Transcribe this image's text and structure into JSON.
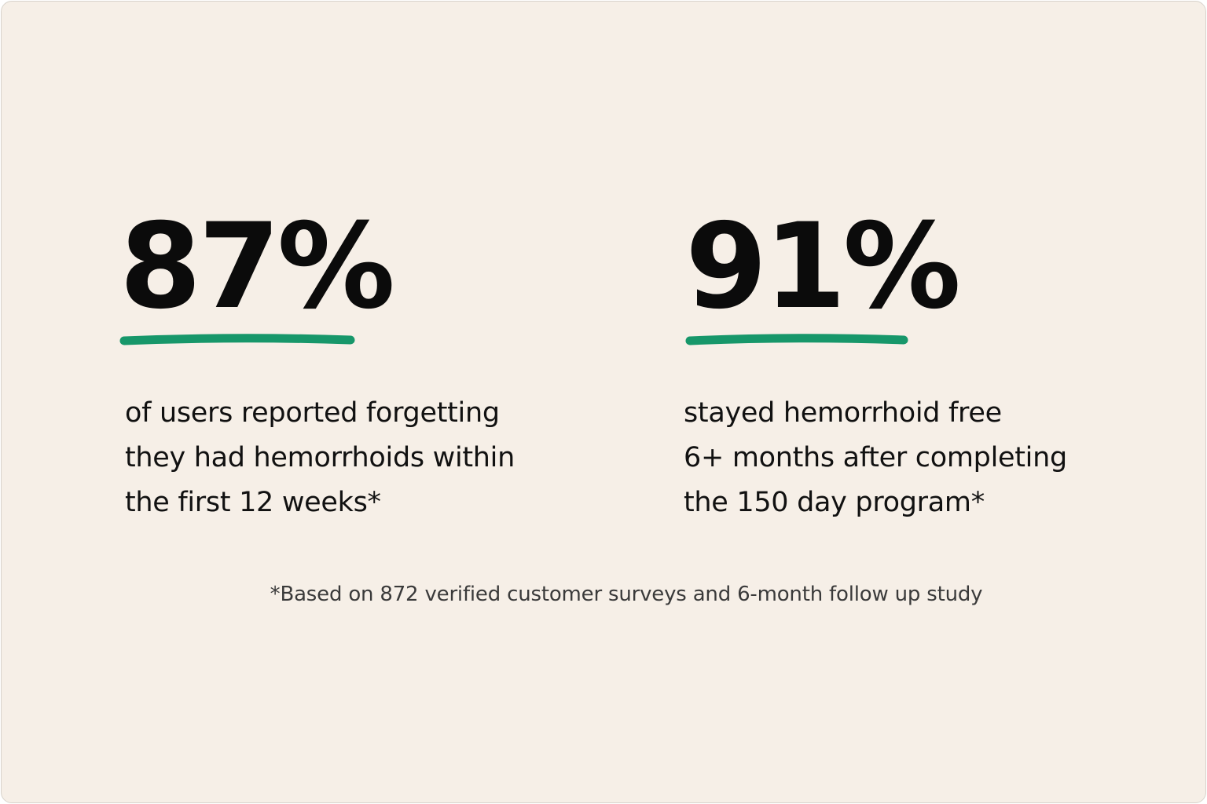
{
  "stats": [
    {
      "value": "87%",
      "lines": [
        "of users reported forgetting",
        "they had hemorrhoids within",
        "the first 12 weeks*"
      ]
    },
    {
      "value": "91%",
      "lines": [
        "stayed hemorrhoid free",
        "6+ months after completing",
        "the 150 day program*"
      ]
    }
  ],
  "footnote": "*Based on 872 verified customer surveys and 6-month follow up study"
}
